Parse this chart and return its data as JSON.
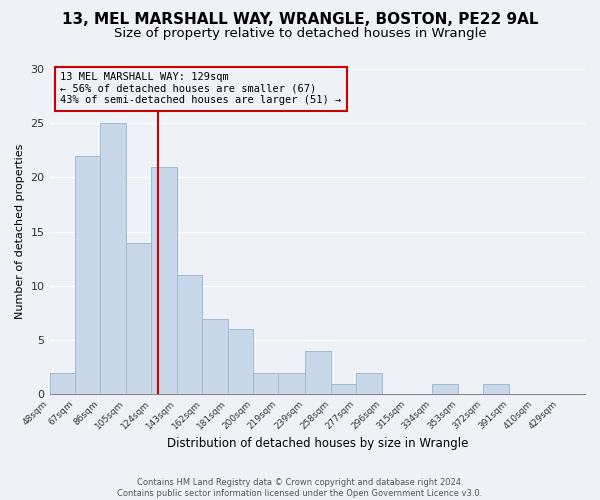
{
  "title_line1": "13, MEL MARSHALL WAY, WRANGLE, BOSTON, PE22 9AL",
  "title_line2": "Size of property relative to detached houses in Wrangle",
  "xlabel": "Distribution of detached houses by size in Wrangle",
  "ylabel": "Number of detached properties",
  "bar_edges": [
    48,
    67,
    86,
    105,
    124,
    143,
    162,
    181,
    200,
    219,
    239,
    258,
    277,
    296,
    315,
    334,
    353,
    372,
    391,
    410,
    429
  ],
  "bar_heights": [
    2,
    22,
    25,
    14,
    21,
    11,
    7,
    6,
    2,
    2,
    4,
    1,
    2,
    0,
    0,
    1,
    0,
    1,
    0,
    0
  ],
  "bar_color": "#c8d8ea",
  "bar_edgecolor": "#a0bcd0",
  "property_size": 129,
  "vline_color": "#cc0000",
  "annotation_text": "13 MEL MARSHALL WAY: 129sqm\n← 56% of detached houses are smaller (67)\n43% of semi-detached houses are larger (51) →",
  "annotation_box_edgecolor": "#cc0000",
  "ylim": [
    0,
    30
  ],
  "yticks": [
    0,
    5,
    10,
    15,
    20,
    25,
    30
  ],
  "footer_line1": "Contains HM Land Registry data © Crown copyright and database right 2024.",
  "footer_line2": "Contains public sector information licensed under the Open Government Licence v3.0.",
  "background_color": "#eef2f6",
  "title_fontsize": 11,
  "subtitle_fontsize": 9.5,
  "title_fontweight": "bold"
}
